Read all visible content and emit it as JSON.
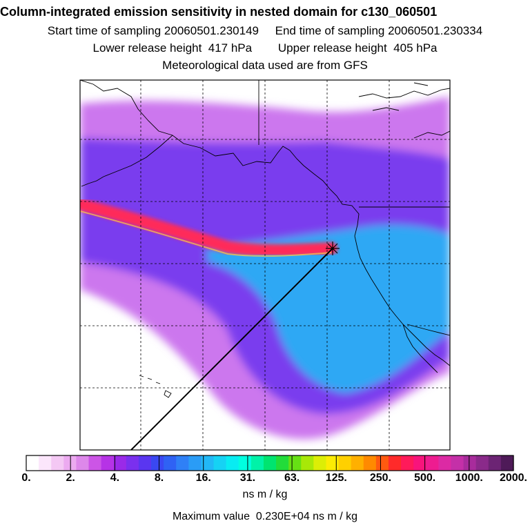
{
  "header": {
    "title": "Column-integrated emission sensitivity in nested domain for c130_060501",
    "sampling_line": "Start time of sampling 20060501.230149     End time of sampling 20060501.230334",
    "release_line": "Lower release height  417 hPa        Upper release height  405 hPa",
    "met_line": "Meteorological data used are from GFS"
  },
  "legend": {
    "tick_labels": [
      "0.",
      "2.",
      "4.",
      "8.",
      "16.",
      "31.",
      "63.",
      "125.",
      "250.",
      "500.",
      "1000.",
      "2000."
    ],
    "colors": [
      "#ffffff",
      "#fbe6fb",
      "#f4c8f4",
      "#ecaaf0",
      "#dd88ea",
      "#cc55e6",
      "#b633e6",
      "#9a2ae8",
      "#7a30ee",
      "#5a36f0",
      "#3a48f2",
      "#2f62f4",
      "#2f80f6",
      "#2a9cf6",
      "#22b8f6",
      "#16d2f4",
      "#08ecf2",
      "#00ffe0",
      "#00f2a8",
      "#00e470",
      "#22dc3a",
      "#66e014",
      "#a8e808",
      "#dcee06",
      "#fcec04",
      "#ffd000",
      "#ffb000",
      "#ff8a00",
      "#ff5a10",
      "#ff2a2a",
      "#ff1a5a",
      "#f8147c",
      "#ee1c90",
      "#dc2aa4",
      "#c430a8",
      "#a82c9c",
      "#8a2a8a",
      "#6c2474",
      "#4e1a58"
    ],
    "units": "ns m / kg",
    "max_value": "Maximum value  0.230E+04 ns m / kg"
  },
  "map": {
    "plume_outer_color": "#cc77ee",
    "plume_mid_color": "#7a3cee",
    "plume_core_color": "#2fa8f4",
    "plume_hot_color": "#ff2a5a",
    "coast_color": "#000000",
    "grid_color": "#000000"
  }
}
